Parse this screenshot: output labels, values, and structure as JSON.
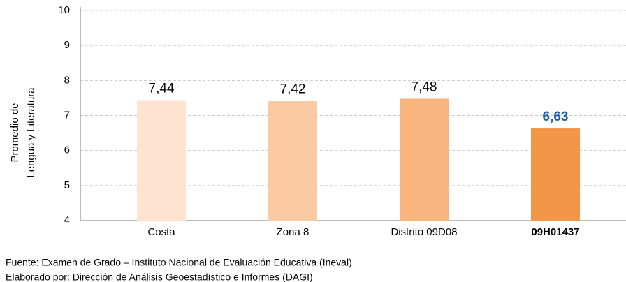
{
  "chart_data": {
    "type": "bar",
    "ylabel": [
      "Promedio de",
      "Lengua y Literatura"
    ],
    "categories": [
      "Costa",
      "Zona 8",
      "Distrito 09D08",
      "09H01437"
    ],
    "values": [
      7.44,
      7.42,
      7.48,
      6.63
    ],
    "value_labels": [
      "7,44",
      "7,42",
      "7,48",
      "6,63"
    ],
    "colors": [
      "#fde3d0",
      "#fbc9a2",
      "#f8b47f",
      "#f29648"
    ],
    "highlight": 3,
    "highlight_color": "#1f5fa8",
    "ylim": [
      4,
      10
    ],
    "yticks": [
      4,
      5,
      6,
      7,
      8,
      9,
      10
    ],
    "grid": true,
    "notes": [
      "Fuente: Examen de Grado – Instituto Nacional de Evaluación Educativa (Ineval)",
      "Elaborado por: Dirección de Análisis Geoestadístico e Informes (DAGI)"
    ]
  }
}
